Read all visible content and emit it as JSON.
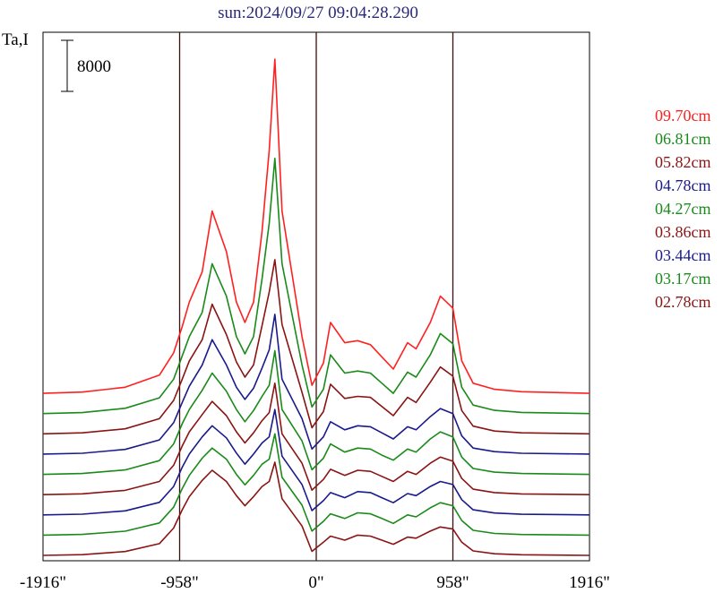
{
  "chart_data": {
    "type": "line",
    "title": "sun:2024/09/27 09:04:28.290",
    "ylabel": "Ta,I",
    "xlabel": "",
    "xlim": [
      -1916,
      1916
    ],
    "x_ticks": [
      {
        "value": -1916,
        "label": "-1916\""
      },
      {
        "value": -958,
        "label": "-958\""
      },
      {
        "value": 0,
        "label": "0\""
      },
      {
        "value": 958,
        "label": "958\""
      },
      {
        "value": 1916,
        "label": "1916\""
      }
    ],
    "vertical_lines": [
      -958,
      0,
      958
    ],
    "scale_bar": {
      "value": 8000,
      "label": "8000"
    },
    "grid": false,
    "legend_position": "right",
    "series": [
      {
        "name": "09.70cm",
        "color": "#ff2020",
        "baseline": 7000,
        "x": [
          -1916,
          -1640,
          -1340,
          -1100,
          -1000,
          -940,
          -890,
          -800,
          -730,
          -630,
          -560,
          -500,
          -440,
          -380,
          -330,
          -290,
          -240,
          -100,
          -30,
          50,
          100,
          200,
          290,
          380,
          460,
          540,
          640,
          700,
          800,
          870,
          958,
          1020,
          1100,
          1250,
          1440,
          1916
        ],
        "y": [
          0,
          60,
          300,
          900,
          2000,
          3300,
          4500,
          6000,
          9000,
          7000,
          4500,
          3500,
          4500,
          8000,
          12000,
          16500,
          9000,
          2800,
          400,
          1500,
          3500,
          2500,
          2600,
          2400,
          1800,
          1200,
          2500,
          2200,
          3500,
          4800,
          4200,
          1600,
          500,
          200,
          80,
          0
        ]
      },
      {
        "name": "06.81cm",
        "color": "#1a8a1a",
        "baseline": 6000,
        "x": [
          -1916,
          -1640,
          -1340,
          -1100,
          -1000,
          -940,
          -890,
          -800,
          -730,
          -630,
          -560,
          -500,
          -440,
          -380,
          -330,
          -290,
          -240,
          -100,
          -30,
          50,
          100,
          200,
          290,
          380,
          460,
          540,
          640,
          700,
          800,
          870,
          958,
          1020,
          1100,
          1250,
          1440,
          1916
        ],
        "y": [
          0,
          50,
          260,
          780,
          1700,
          2850,
          3800,
          5000,
          7400,
          5800,
          3800,
          2950,
          3800,
          6650,
          9400,
          12600,
          7400,
          2400,
          330,
          1200,
          2900,
          2000,
          2100,
          2000,
          1500,
          1000,
          2050,
          1800,
          2900,
          3950,
          3450,
          1300,
          420,
          160,
          60,
          0
        ]
      },
      {
        "name": "05.82cm",
        "color": "#8a1414",
        "baseline": 5000,
        "x": [
          -1916,
          -1640,
          -1340,
          -1100,
          -1000,
          -940,
          -890,
          -800,
          -730,
          -630,
          -560,
          -500,
          -440,
          -380,
          -330,
          -290,
          -240,
          -100,
          -30,
          50,
          100,
          200,
          290,
          380,
          460,
          540,
          640,
          700,
          800,
          870,
          958,
          1020,
          1100,
          1250,
          1440,
          1916
        ],
        "y": [
          0,
          50,
          250,
          750,
          1650,
          2700,
          3600,
          4650,
          6400,
          4900,
          3550,
          2800,
          3400,
          5350,
          7000,
          8600,
          5400,
          2050,
          300,
          1100,
          2450,
          1750,
          1850,
          1800,
          1350,
          900,
          1800,
          1550,
          2550,
          3300,
          2850,
          1150,
          380,
          140,
          50,
          0
        ]
      },
      {
        "name": "04.78cm",
        "color": "#1a1a8c",
        "baseline": 4000,
        "x": [
          -1916,
          -1640,
          -1340,
          -1100,
          -1000,
          -940,
          -890,
          -800,
          -730,
          -630,
          -560,
          -500,
          -440,
          -380,
          -330,
          -290,
          -240,
          -100,
          -30,
          50,
          100,
          200,
          290,
          380,
          460,
          540,
          640,
          700,
          800,
          870,
          958,
          1020,
          1100,
          1250,
          1440,
          1916
        ],
        "y": [
          0,
          40,
          230,
          700,
          1550,
          2550,
          3350,
          4400,
          5650,
          4400,
          3300,
          2700,
          3250,
          4250,
          5150,
          6900,
          3700,
          1750,
          250,
          850,
          1600,
          1200,
          1400,
          1350,
          1050,
          750,
          1350,
          1200,
          1850,
          2250,
          2000,
          900,
          300,
          120,
          40,
          0
        ]
      },
      {
        "name": "04.27cm",
        "color": "#1a8a1a",
        "baseline": 3000,
        "x": [
          -1916,
          -1640,
          -1340,
          -1100,
          -1000,
          -940,
          -890,
          -800,
          -730,
          -630,
          -560,
          -500,
          -440,
          -380,
          -330,
          -290,
          -240,
          -100,
          -30,
          50,
          100,
          200,
          290,
          380,
          460,
          540,
          640,
          700,
          800,
          870,
          958,
          1020,
          1100,
          1250,
          1440,
          1916
        ],
        "y": [
          0,
          40,
          220,
          680,
          1500,
          2500,
          3200,
          4150,
          5000,
          4100,
          3200,
          2600,
          3150,
          3850,
          4400,
          6100,
          3200,
          1650,
          230,
          800,
          1500,
          1100,
          1300,
          1250,
          950,
          700,
          1250,
          1100,
          1750,
          2100,
          1850,
          850,
          290,
          110,
          40,
          0
        ]
      },
      {
        "name": "03.86cm",
        "color": "#8a1414",
        "baseline": 2000,
        "x": [
          -1916,
          -1640,
          -1340,
          -1100,
          -1000,
          -940,
          -890,
          -800,
          -730,
          -630,
          -560,
          -500,
          -440,
          -380,
          -330,
          -290,
          -240,
          -100,
          -30,
          50,
          100,
          200,
          290,
          380,
          460,
          540,
          640,
          700,
          800,
          870,
          958,
          1020,
          1100,
          1250,
          1440,
          1916
        ],
        "y": [
          0,
          40,
          210,
          650,
          1450,
          2400,
          3100,
          3950,
          4600,
          3900,
          3100,
          2550,
          3050,
          3650,
          4050,
          5500,
          3000,
          1550,
          220,
          750,
          1250,
          950,
          1200,
          1150,
          900,
          650,
          1150,
          1000,
          1550,
          1850,
          1650,
          800,
          270,
          100,
          35,
          0
        ]
      },
      {
        "name": "03.44cm",
        "color": "#1a1a8c",
        "baseline": 1000,
        "x": [
          -1916,
          -1640,
          -1340,
          -1100,
          -1000,
          -940,
          -890,
          -800,
          -730,
          -630,
          -560,
          -500,
          -440,
          -380,
          -330,
          -290,
          -240,
          -100,
          -30,
          50,
          100,
          200,
          290,
          380,
          460,
          540,
          640,
          700,
          800,
          870,
          958,
          1020,
          1100,
          1250,
          1440,
          1916
        ],
        "y": [
          0,
          35,
          200,
          620,
          1400,
          2350,
          3000,
          3850,
          4400,
          3800,
          3050,
          2500,
          3000,
          3550,
          3850,
          5200,
          2900,
          1500,
          210,
          700,
          1100,
          850,
          1150,
          1100,
          850,
          600,
          1050,
          950,
          1400,
          1650,
          1500,
          750,
          250,
          90,
          30,
          0
        ]
      },
      {
        "name": "03.17cm",
        "color": "#1a8a1a",
        "baseline": 0,
        "x": [
          -1916,
          -1640,
          -1340,
          -1100,
          -1000,
          -940,
          -890,
          -800,
          -730,
          -630,
          -560,
          -500,
          -440,
          -380,
          -330,
          -290,
          -240,
          -100,
          -30,
          50,
          100,
          200,
          290,
          380,
          460,
          540,
          640,
          700,
          800,
          870,
          958,
          1020,
          1100,
          1250,
          1440,
          1916
        ],
        "y": [
          0,
          35,
          195,
          600,
          1380,
          2300,
          2950,
          3800,
          4300,
          3750,
          3000,
          2480,
          2950,
          3500,
          3750,
          5000,
          2850,
          1480,
          200,
          680,
          1050,
          820,
          1100,
          1050,
          820,
          580,
          1000,
          900,
          1350,
          1600,
          1450,
          720,
          240,
          85,
          30,
          0
        ]
      },
      {
        "name": "02.78cm",
        "color": "#8a1414",
        "baseline": -1000,
        "x": [
          -1916,
          -1640,
          -1340,
          -1100,
          -1000,
          -940,
          -890,
          -800,
          -730,
          -630,
          -560,
          -500,
          -440,
          -380,
          -330,
          -290,
          -240,
          -100,
          -30,
          50,
          100,
          200,
          290,
          380,
          460,
          540,
          640,
          700,
          800,
          870,
          958,
          1020,
          1100,
          1250,
          1440,
          1916
        ],
        "y": [
          0,
          35,
          190,
          580,
          1350,
          2250,
          2900,
          3700,
          4200,
          3650,
          2950,
          2450,
          2900,
          3400,
          3650,
          4600,
          2800,
          1450,
          200,
          650,
          950,
          750,
          1000,
          950,
          750,
          550,
          900,
          850,
          1200,
          1400,
          1300,
          650,
          220,
          80,
          30,
          0
        ]
      }
    ]
  }
}
